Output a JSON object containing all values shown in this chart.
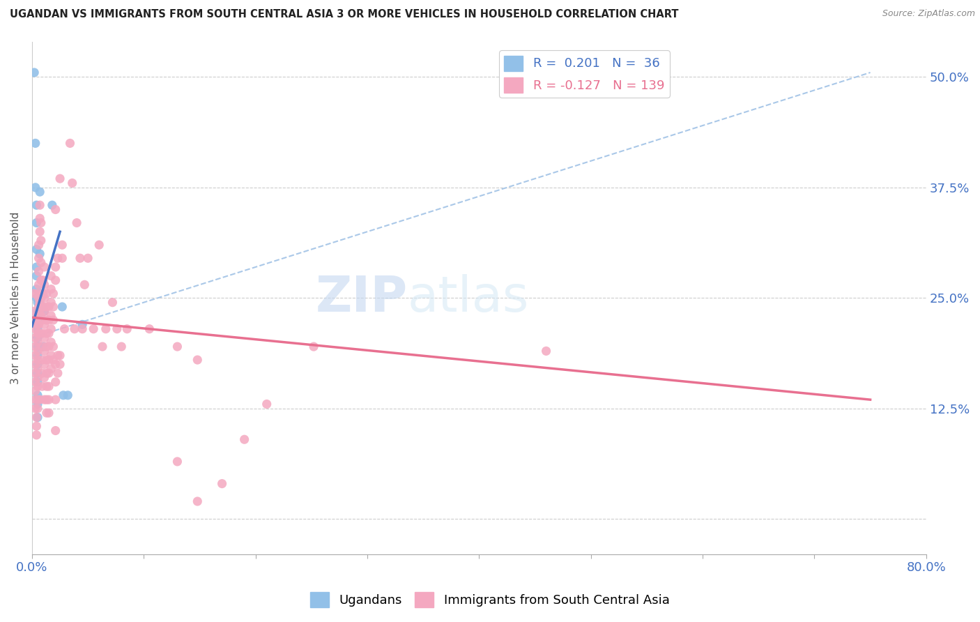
{
  "title": "UGANDAN VS IMMIGRANTS FROM SOUTH CENTRAL ASIA 3 OR MORE VEHICLES IN HOUSEHOLD CORRELATION CHART",
  "source": "Source: ZipAtlas.com",
  "ylabel": "3 or more Vehicles in Household",
  "ytick_vals": [
    0.0,
    0.125,
    0.25,
    0.375,
    0.5
  ],
  "ytick_labels": [
    "",
    "12.5%",
    "25.0%",
    "37.5%",
    "50.0%"
  ],
  "xrange": [
    0.0,
    0.8
  ],
  "yrange": [
    -0.04,
    0.54
  ],
  "ugandan_color": "#92c0e8",
  "immigrant_color": "#f4a8c0",
  "ugandan_line_color": "#4472c4",
  "immigrant_line_color": "#e87090",
  "trendline_dashed_color": "#aac8e8",
  "ugandan_line": [
    [
      0.0,
      0.218
    ],
    [
      0.025,
      0.325
    ]
  ],
  "immigrant_line": [
    [
      0.0,
      0.228
    ],
    [
      0.75,
      0.135
    ]
  ],
  "dashed_line": [
    [
      0.0,
      0.205
    ],
    [
      0.75,
      0.505
    ]
  ],
  "ugandan_scatter": [
    [
      0.002,
      0.505
    ],
    [
      0.003,
      0.425
    ],
    [
      0.003,
      0.375
    ],
    [
      0.004,
      0.355
    ],
    [
      0.004,
      0.335
    ],
    [
      0.004,
      0.305
    ],
    [
      0.004,
      0.285
    ],
    [
      0.004,
      0.275
    ],
    [
      0.004,
      0.26
    ],
    [
      0.004,
      0.25
    ],
    [
      0.005,
      0.245
    ],
    [
      0.005,
      0.235
    ],
    [
      0.005,
      0.225
    ],
    [
      0.005,
      0.215
    ],
    [
      0.005,
      0.205
    ],
    [
      0.005,
      0.195
    ],
    [
      0.005,
      0.185
    ],
    [
      0.005,
      0.175
    ],
    [
      0.005,
      0.165
    ],
    [
      0.005,
      0.155
    ],
    [
      0.005,
      0.14
    ],
    [
      0.005,
      0.13
    ],
    [
      0.005,
      0.115
    ],
    [
      0.006,
      0.225
    ],
    [
      0.006,
      0.195
    ],
    [
      0.007,
      0.37
    ],
    [
      0.007,
      0.3
    ],
    [
      0.008,
      0.235
    ],
    [
      0.009,
      0.24
    ],
    [
      0.01,
      0.195
    ],
    [
      0.011,
      0.235
    ],
    [
      0.018,
      0.355
    ],
    [
      0.027,
      0.24
    ],
    [
      0.028,
      0.14
    ],
    [
      0.032,
      0.14
    ],
    [
      0.045,
      0.22
    ]
  ],
  "immigrant_scatter": [
    [
      0.002,
      0.255
    ],
    [
      0.002,
      0.235
    ],
    [
      0.003,
      0.225
    ],
    [
      0.003,
      0.215
    ],
    [
      0.003,
      0.205
    ],
    [
      0.003,
      0.195
    ],
    [
      0.003,
      0.185
    ],
    [
      0.003,
      0.175
    ],
    [
      0.003,
      0.165
    ],
    [
      0.003,
      0.155
    ],
    [
      0.003,
      0.145
    ],
    [
      0.003,
      0.135
    ],
    [
      0.003,
      0.125
    ],
    [
      0.004,
      0.115
    ],
    [
      0.004,
      0.105
    ],
    [
      0.004,
      0.095
    ],
    [
      0.005,
      0.135
    ],
    [
      0.005,
      0.125
    ],
    [
      0.005,
      0.255
    ],
    [
      0.005,
      0.23
    ],
    [
      0.005,
      0.22
    ],
    [
      0.005,
      0.21
    ],
    [
      0.005,
      0.2
    ],
    [
      0.005,
      0.19
    ],
    [
      0.005,
      0.18
    ],
    [
      0.005,
      0.17
    ],
    [
      0.005,
      0.16
    ],
    [
      0.005,
      0.15
    ],
    [
      0.006,
      0.31
    ],
    [
      0.006,
      0.295
    ],
    [
      0.006,
      0.28
    ],
    [
      0.006,
      0.265
    ],
    [
      0.006,
      0.25
    ],
    [
      0.006,
      0.24
    ],
    [
      0.006,
      0.23
    ],
    [
      0.006,
      0.22
    ],
    [
      0.006,
      0.21
    ],
    [
      0.007,
      0.355
    ],
    [
      0.007,
      0.34
    ],
    [
      0.007,
      0.325
    ],
    [
      0.007,
      0.245
    ],
    [
      0.007,
      0.23
    ],
    [
      0.007,
      0.21
    ],
    [
      0.007,
      0.135
    ],
    [
      0.008,
      0.335
    ],
    [
      0.008,
      0.315
    ],
    [
      0.008,
      0.29
    ],
    [
      0.008,
      0.27
    ],
    [
      0.008,
      0.25
    ],
    [
      0.008,
      0.23
    ],
    [
      0.009,
      0.27
    ],
    [
      0.009,
      0.255
    ],
    [
      0.009,
      0.24
    ],
    [
      0.009,
      0.225
    ],
    [
      0.009,
      0.21
    ],
    [
      0.009,
      0.195
    ],
    [
      0.009,
      0.18
    ],
    [
      0.009,
      0.165
    ],
    [
      0.009,
      0.15
    ],
    [
      0.01,
      0.27
    ],
    [
      0.01,
      0.255
    ],
    [
      0.01,
      0.24
    ],
    [
      0.011,
      0.285
    ],
    [
      0.011,
      0.265
    ],
    [
      0.011,
      0.25
    ],
    [
      0.011,
      0.235
    ],
    [
      0.011,
      0.22
    ],
    [
      0.011,
      0.205
    ],
    [
      0.011,
      0.19
    ],
    [
      0.011,
      0.175
    ],
    [
      0.011,
      0.16
    ],
    [
      0.011,
      0.135
    ],
    [
      0.013,
      0.255
    ],
    [
      0.013,
      0.24
    ],
    [
      0.013,
      0.225
    ],
    [
      0.013,
      0.21
    ],
    [
      0.013,
      0.195
    ],
    [
      0.013,
      0.18
    ],
    [
      0.013,
      0.165
    ],
    [
      0.013,
      0.15
    ],
    [
      0.013,
      0.135
    ],
    [
      0.013,
      0.12
    ],
    [
      0.015,
      0.24
    ],
    [
      0.015,
      0.225
    ],
    [
      0.015,
      0.21
    ],
    [
      0.015,
      0.195
    ],
    [
      0.015,
      0.18
    ],
    [
      0.015,
      0.165
    ],
    [
      0.015,
      0.15
    ],
    [
      0.015,
      0.135
    ],
    [
      0.015,
      0.12
    ],
    [
      0.017,
      0.275
    ],
    [
      0.017,
      0.26
    ],
    [
      0.017,
      0.245
    ],
    [
      0.017,
      0.23
    ],
    [
      0.017,
      0.215
    ],
    [
      0.017,
      0.2
    ],
    [
      0.017,
      0.185
    ],
    [
      0.017,
      0.17
    ],
    [
      0.019,
      0.255
    ],
    [
      0.019,
      0.24
    ],
    [
      0.019,
      0.225
    ],
    [
      0.019,
      0.195
    ],
    [
      0.019,
      0.18
    ],
    [
      0.021,
      0.35
    ],
    [
      0.021,
      0.285
    ],
    [
      0.021,
      0.27
    ],
    [
      0.021,
      0.175
    ],
    [
      0.021,
      0.155
    ],
    [
      0.021,
      0.135
    ],
    [
      0.021,
      0.1
    ],
    [
      0.023,
      0.295
    ],
    [
      0.023,
      0.185
    ],
    [
      0.023,
      0.165
    ],
    [
      0.025,
      0.385
    ],
    [
      0.025,
      0.185
    ],
    [
      0.025,
      0.175
    ],
    [
      0.027,
      0.31
    ],
    [
      0.027,
      0.295
    ],
    [
      0.029,
      0.215
    ],
    [
      0.034,
      0.425
    ],
    [
      0.036,
      0.38
    ],
    [
      0.038,
      0.215
    ],
    [
      0.04,
      0.335
    ],
    [
      0.043,
      0.295
    ],
    [
      0.045,
      0.215
    ],
    [
      0.047,
      0.265
    ],
    [
      0.05,
      0.295
    ],
    [
      0.055,
      0.215
    ],
    [
      0.06,
      0.31
    ],
    [
      0.063,
      0.195
    ],
    [
      0.066,
      0.215
    ],
    [
      0.072,
      0.245
    ],
    [
      0.076,
      0.215
    ],
    [
      0.08,
      0.195
    ],
    [
      0.085,
      0.215
    ],
    [
      0.105,
      0.215
    ],
    [
      0.13,
      0.195
    ],
    [
      0.148,
      0.18
    ],
    [
      0.252,
      0.195
    ],
    [
      0.13,
      0.065
    ],
    [
      0.148,
      0.02
    ],
    [
      0.17,
      0.04
    ],
    [
      0.19,
      0.09
    ],
    [
      0.21,
      0.13
    ],
    [
      0.46,
      0.19
    ]
  ]
}
